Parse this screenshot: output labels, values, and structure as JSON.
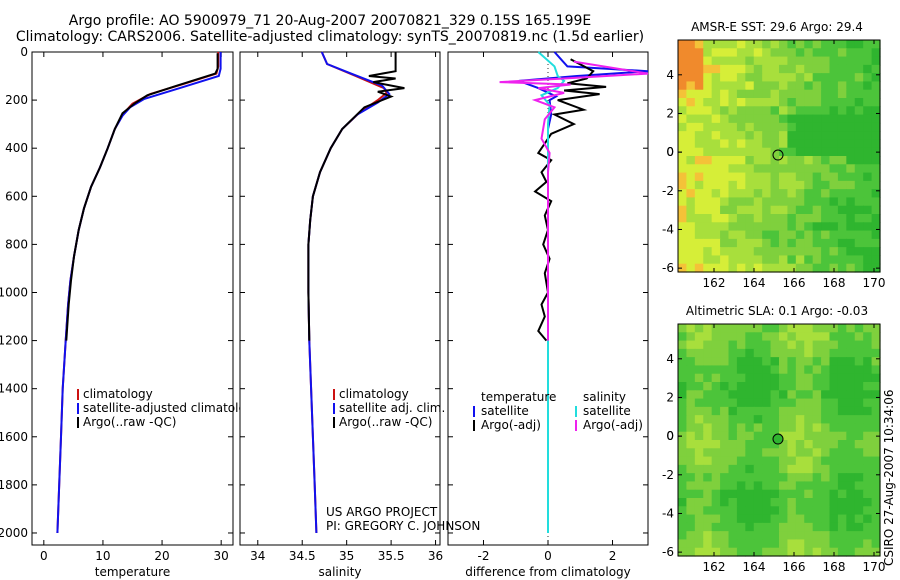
{
  "title_line1": "Argo profile: AO 5900979_71 20-Aug-2007 20070821_329 0.15S 165.199E",
  "title_line2": "Climatology: CARS2006. Satellite-adjusted climatology: synTS_20070819.nc (1.5d earlier)",
  "map1_title": "AMSR-E SST: 29.6 Argo: 29.4",
  "map2_title": "Altimetric SLA: 0.1 Argo: -0.03",
  "stamp": "CSIRO 27-Aug-2007 10:34:06",
  "project_text": [
    "US ARGO PROJECT",
    "PI: GREGORY C. JOHNSON"
  ],
  "colors": {
    "climatology": "#cc1111",
    "satellite": "#1111ee",
    "argo": "#000000",
    "satellite_salinity": "#22dddd",
    "argo_salinity": "#ee22ee"
  },
  "chart_data": [
    {
      "type": "line",
      "xlabel": "temperature",
      "ylabel": "",
      "xlim": [
        -2,
        32
      ],
      "ylim": [
        2050,
        0
      ],
      "x_ticks": [
        0,
        10,
        20,
        30
      ],
      "y_ticks": [
        0,
        200,
        400,
        600,
        800,
        1000,
        1200,
        1400,
        1600,
        1800,
        2000
      ],
      "legend": [
        "climatology",
        "satellite-adjusted climatology",
        "Argo(..raw -QC)"
      ],
      "series": [
        {
          "name": "climatology",
          "color": "climatology",
          "points": [
            [
              29.5,
              0
            ],
            [
              29.5,
              60
            ],
            [
              29.2,
              90
            ],
            [
              24,
              130
            ],
            [
              18,
              175
            ],
            [
              15,
              215
            ],
            [
              13.5,
              255
            ],
            [
              12,
              320
            ],
            [
              10.8,
              400
            ],
            [
              9.5,
              480
            ],
            [
              8,
              560
            ],
            [
              6.8,
              650
            ],
            [
              5.9,
              740
            ],
            [
              5.1,
              850
            ],
            [
              4.5,
              950
            ],
            [
              4.1,
              1050
            ],
            [
              3.7,
              1200
            ],
            [
              3.2,
              1400
            ],
            [
              2.9,
              1600
            ],
            [
              2.6,
              1800
            ],
            [
              2.3,
              2000
            ]
          ]
        },
        {
          "name": "satellite-adjusted climatology",
          "color": "satellite",
          "points": [
            [
              29.9,
              0
            ],
            [
              29.9,
              70
            ],
            [
              29.6,
              100
            ],
            [
              23,
              150
            ],
            [
              17,
              195
            ],
            [
              14.6,
              230
            ],
            [
              13.3,
              265
            ],
            [
              12,
              320
            ],
            [
              10.8,
              400
            ],
            [
              9.5,
              480
            ],
            [
              8,
              560
            ],
            [
              6.8,
              650
            ],
            [
              5.9,
              740
            ],
            [
              5.1,
              850
            ],
            [
              4.5,
              950
            ],
            [
              4.1,
              1050
            ],
            [
              3.7,
              1200
            ],
            [
              3.2,
              1400
            ],
            [
              2.9,
              1600
            ],
            [
              2.6,
              1800
            ],
            [
              2.3,
              2000
            ]
          ]
        },
        {
          "name": "Argo(..raw -QC)",
          "color": "argo",
          "points": [
            [
              29.4,
              5
            ],
            [
              29.4,
              70
            ],
            [
              29.0,
              90
            ],
            [
              22.5,
              140
            ],
            [
              17.5,
              180
            ],
            [
              15.3,
              215
            ],
            [
              13.3,
              255
            ],
            [
              12,
              320
            ],
            [
              10.8,
              400
            ],
            [
              9.5,
              480
            ],
            [
              8,
              560
            ],
            [
              6.8,
              650
            ],
            [
              5.9,
              740
            ],
            [
              5.1,
              850
            ],
            [
              4.6,
              950
            ],
            [
              4.2,
              1050
            ],
            [
              3.8,
              1200
            ]
          ]
        }
      ]
    },
    {
      "type": "line",
      "xlabel": "salinity",
      "ylabel": "",
      "xlim": [
        33.8,
        36.05
      ],
      "ylim": [
        2050,
        0
      ],
      "x_ticks": [
        34,
        34.5,
        35,
        35.5,
        36
      ],
      "legend": [
        "climatology",
        "satellite adj. clim.",
        "Argo(..raw -QC)"
      ],
      "series": [
        {
          "name": "climatology",
          "color": "climatology",
          "points": [
            [
              34.72,
              0
            ],
            [
              34.78,
              50
            ],
            [
              35.1,
              100
            ],
            [
              35.42,
              150
            ],
            [
              35.45,
              170
            ],
            [
              35.35,
              200
            ],
            [
              35.15,
              250
            ],
            [
              34.95,
              320
            ],
            [
              34.82,
              400
            ],
            [
              34.7,
              500
            ],
            [
              34.62,
              600
            ],
            [
              34.59,
              700
            ],
            [
              34.57,
              800
            ],
            [
              34.57,
              1000
            ],
            [
              34.58,
              1200
            ],
            [
              34.6,
              1400
            ],
            [
              34.62,
              1600
            ],
            [
              34.64,
              1800
            ],
            [
              34.66,
              2000
            ]
          ]
        },
        {
          "name": "satellite adj. clim.",
          "color": "satellite",
          "points": [
            [
              34.72,
              0
            ],
            [
              34.78,
              50
            ],
            [
              35.05,
              90
            ],
            [
              35.4,
              140
            ],
            [
              35.48,
              175
            ],
            [
              35.35,
              210
            ],
            [
              35.12,
              260
            ],
            [
              34.95,
              320
            ],
            [
              34.82,
              400
            ],
            [
              34.7,
              500
            ],
            [
              34.62,
              600
            ],
            [
              34.59,
              700
            ],
            [
              34.57,
              800
            ],
            [
              34.57,
              1000
            ],
            [
              34.58,
              1200
            ],
            [
              34.6,
              1400
            ],
            [
              34.62,
              1600
            ],
            [
              34.64,
              1800
            ],
            [
              34.66,
              2000
            ]
          ]
        },
        {
          "name": "Argo(..raw -QC)",
          "color": "argo",
          "points": [
            [
              35.55,
              0
            ],
            [
              35.55,
              80
            ],
            [
              35.25,
              100
            ],
            [
              35.55,
              110
            ],
            [
              35.3,
              125
            ],
            [
              35.65,
              150
            ],
            [
              35.35,
              165
            ],
            [
              35.5,
              185
            ],
            [
              35.2,
              230
            ],
            [
              34.95,
              320
            ],
            [
              34.82,
              400
            ],
            [
              34.7,
              500
            ],
            [
              34.62,
              600
            ],
            [
              34.59,
              700
            ],
            [
              34.57,
              800
            ],
            [
              34.57,
              1000
            ],
            [
              34.58,
              1200
            ]
          ]
        }
      ]
    },
    {
      "type": "line",
      "xlabel": "difference from climatology",
      "ylabel": "",
      "xlim": [
        -3.1,
        3.1
      ],
      "ylim": [
        2050,
        0
      ],
      "x_ticks": [
        -2,
        0,
        2
      ],
      "legend": [
        "temperature",
        "satellite",
        "Argo(-adj)",
        "salinity",
        "satellite",
        "Argo(-adj)"
      ],
      "series": [
        {
          "name": "satellite",
          "color": "satellite",
          "points": [
            [
              0.2,
              0
            ],
            [
              0.4,
              30
            ],
            [
              0.6,
              60
            ],
            [
              3.1,
              80
            ],
            [
              0.9,
              100
            ],
            [
              -0.9,
              120
            ],
            [
              -0.3,
              150
            ],
            [
              0.25,
              185
            ],
            [
              0.05,
              200
            ],
            [
              0.1,
              260
            ],
            [
              0,
              320
            ],
            [
              0,
              400
            ],
            [
              0,
              2000
            ]
          ]
        },
        {
          "name": "Argo(-adj)",
          "color": "argo",
          "points": [
            [
              0.7,
              30
            ],
            [
              1.4,
              80
            ],
            [
              1.2,
              110
            ],
            [
              0.6,
              130
            ],
            [
              1.8,
              145
            ],
            [
              0.5,
              160
            ],
            [
              1.6,
              175
            ],
            [
              0.3,
              200
            ],
            [
              1.1,
              240
            ],
            [
              0.2,
              260
            ],
            [
              0.8,
              300
            ],
            [
              0.1,
              340
            ],
            [
              -0.1,
              380
            ],
            [
              -0.3,
              420
            ],
            [
              0.1,
              450
            ],
            [
              -0.2,
              500
            ],
            [
              -0.05,
              540
            ],
            [
              -0.4,
              580
            ],
            [
              0.1,
              620
            ],
            [
              -0.1,
              680
            ],
            [
              0,
              740
            ],
            [
              -0.15,
              800
            ],
            [
              0.05,
              860
            ],
            [
              -0.1,
              920
            ],
            [
              0,
              1000
            ],
            [
              -0.2,
              1050
            ],
            [
              -0.1,
              1100
            ],
            [
              -0.3,
              1160
            ],
            [
              -0.05,
              1200
            ]
          ]
        },
        {
          "name": "satellite",
          "color": "satellite_salinity",
          "points": [
            [
              -0.3,
              0
            ],
            [
              0.2,
              60
            ],
            [
              0.3,
              100
            ],
            [
              0.5,
              120
            ],
            [
              0.3,
              150
            ],
            [
              -0.2,
              180
            ],
            [
              0.05,
              220
            ],
            [
              0,
              300
            ],
            [
              0,
              400
            ],
            [
              0,
              2000
            ]
          ]
        },
        {
          "name": "Argo(-adj)",
          "color": "argo_salinity",
          "points": [
            [
              0.8,
              40
            ],
            [
              3.1,
              90
            ],
            [
              0.5,
              110
            ],
            [
              -1.5,
              125
            ],
            [
              0.7,
              135
            ],
            [
              -0.3,
              150
            ],
            [
              0.5,
              170
            ],
            [
              -0.4,
              200
            ],
            [
              0.2,
              230
            ],
            [
              -0.1,
              280
            ],
            [
              -0.2,
              360
            ],
            [
              0.05,
              420
            ],
            [
              0,
              500
            ],
            [
              0,
              1200
            ]
          ]
        }
      ]
    },
    {
      "type": "heatmap",
      "title": "AMSR-E SST: 29.6 Argo: 29.4",
      "xlim": [
        160.2,
        170.3
      ],
      "ylim": [
        -6.2,
        5.8
      ],
      "x_ticks": [
        162,
        164,
        166,
        168,
        170
      ],
      "y_ticks": [
        4,
        2,
        0,
        -2,
        -4,
        -6
      ],
      "marker": [
        165.2,
        -0.15
      ],
      "palette": [
        "#2fb52f",
        "#4cc43a",
        "#7fd03d",
        "#a8df3c",
        "#d6ee38",
        "#f4c238",
        "#f08a2c"
      ]
    },
    {
      "type": "heatmap",
      "title": "Altimetric SLA: 0.1 Argo: -0.03",
      "xlim": [
        160.2,
        170.3
      ],
      "ylim": [
        -6.2,
        5.8
      ],
      "x_ticks": [
        162,
        164,
        166,
        168,
        170
      ],
      "y_ticks": [
        4,
        2,
        0,
        -2,
        -4,
        -6
      ],
      "marker": [
        165.2,
        -0.15
      ],
      "palette": [
        "#2fb52f",
        "#4cc43a",
        "#7fd03d",
        "#a8df3c"
      ]
    }
  ]
}
